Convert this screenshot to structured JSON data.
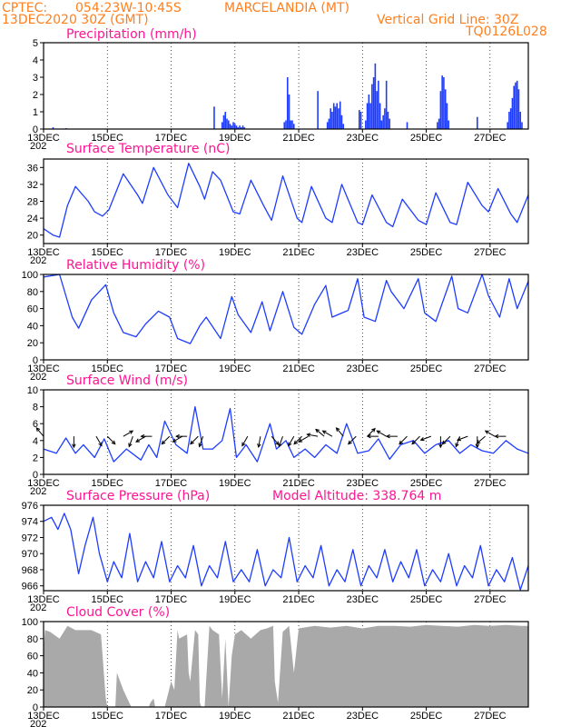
{
  "header": {
    "source": "CPTEC:",
    "coords": "054:23W-10:45S",
    "location": "MARCELANDIA (MT)",
    "run": "13DEC2020 30Z (GMT)",
    "grid_note": "Vertical Grid Line: 30Z",
    "code": "TQ0126L028"
  },
  "x_axis": {
    "labels": [
      "13DEC",
      "15DEC",
      "17DEC",
      "19DEC",
      "21DEC",
      "23DEC",
      "25DEC",
      "27DEC"
    ],
    "label_days": [
      0,
      2,
      4,
      6,
      8,
      10,
      12,
      14
    ],
    "sublabel": "202",
    "day_range": [
      0,
      15.2
    ]
  },
  "colors": {
    "series": "#1e3cff",
    "wind_arrow": "#000000",
    "cloud": "#a9a9a9",
    "title": "#ff1493",
    "header": "#ff7f1e"
  },
  "chart_data": [
    {
      "id": "precip",
      "type": "bar",
      "title": "Precipitation (mm/h)",
      "ylim": [
        0,
        5
      ],
      "yticks": [
        0,
        1,
        2,
        3,
        4,
        5
      ],
      "grid": "vertical dotted at 30Z",
      "x_day": [
        0.3,
        0.7,
        5.35,
        5.6,
        5.65,
        5.7,
        5.75,
        5.8,
        5.85,
        5.9,
        5.95,
        6.0,
        6.05,
        6.1,
        6.15,
        6.2,
        6.25,
        6.3,
        7.55,
        7.6,
        7.65,
        7.7,
        7.75,
        7.8,
        7.85,
        8.6,
        8.9,
        8.95,
        9.0,
        9.05,
        9.1,
        9.15,
        9.2,
        9.25,
        9.3,
        9.35,
        9.4,
        9.9,
        9.95,
        10.1,
        10.15,
        10.2,
        10.25,
        10.3,
        10.35,
        10.4,
        10.45,
        10.5,
        10.55,
        10.6,
        10.65,
        10.7,
        10.75,
        10.8,
        10.85,
        11.4,
        12.35,
        12.4,
        12.45,
        12.5,
        12.55,
        12.6,
        12.65,
        12.7,
        13.6,
        14.55,
        14.6,
        14.65,
        14.7,
        14.75,
        14.8,
        14.85,
        14.9,
        14.95,
        15.0
      ],
      "values": [
        0.1,
        0.05,
        1.3,
        0.4,
        0.8,
        1.0,
        0.6,
        0.5,
        0.3,
        0.2,
        0.4,
        0.3,
        0.2,
        0.1,
        0.2,
        0.1,
        0.2,
        0.1,
        0.4,
        0.5,
        3.0,
        2.0,
        0.5,
        0.5,
        0.3,
        2.2,
        0.4,
        0.6,
        1.2,
        1.0,
        1.5,
        1.3,
        1.5,
        1.2,
        1.6,
        0.8,
        0.3,
        1.1,
        1.0,
        0.5,
        1.5,
        2.0,
        1.5,
        2.6,
        3.0,
        3.8,
        2.2,
        2.8,
        1.5,
        0.5,
        0.8,
        1.2,
        2.8,
        1.0,
        0.6,
        0.4,
        0.4,
        0.6,
        2.2,
        3.1,
        3.0,
        2.3,
        1.5,
        0.5,
        0.7,
        0.4,
        1.0,
        1.2,
        1.8,
        2.5,
        2.7,
        2.8,
        2.3,
        1.0,
        0.4
      ]
    },
    {
      "id": "temperature",
      "type": "line",
      "title": "Surface Temperature (nC)",
      "ylim": [
        18,
        38
      ],
      "yticks": [
        20,
        24,
        28,
        32,
        36
      ],
      "grid": "vertical dotted at 30Z",
      "x_day": [
        0,
        0.3,
        0.5,
        0.75,
        1.0,
        1.4,
        1.6,
        1.85,
        2.05,
        2.5,
        2.95,
        3.1,
        3.45,
        3.9,
        4.2,
        4.55,
        4.9,
        5.05,
        5.3,
        5.55,
        5.95,
        6.15,
        6.5,
        6.9,
        7.15,
        7.5,
        7.95,
        8.1,
        8.4,
        8.85,
        9.05,
        9.35,
        9.85,
        10.0,
        10.3,
        10.75,
        10.95,
        11.25,
        11.75,
        12.0,
        12.3,
        12.75,
        12.95,
        13.3,
        13.75,
        13.95,
        14.25,
        14.65,
        14.85,
        15.2
      ],
      "values": [
        21.5,
        20.0,
        19.5,
        27.0,
        31.5,
        28.0,
        25.5,
        24.5,
        26.0,
        34.5,
        29.5,
        27.5,
        36.0,
        29.5,
        26.5,
        37.0,
        31.5,
        28.5,
        35.0,
        33.0,
        25.5,
        25.0,
        33.0,
        27.0,
        23.5,
        34.0,
        24.0,
        23.0,
        31.5,
        24.0,
        23.0,
        32.0,
        23.0,
        22.5,
        29.5,
        23.0,
        22.0,
        28.5,
        23.5,
        22.5,
        30.0,
        23.0,
        22.5,
        32.5,
        27.0,
        25.5,
        31.0,
        25.0,
        23.0,
        29.5
      ]
    },
    {
      "id": "humidity",
      "type": "line",
      "title": "Relative Humidity (%)",
      "ylim": [
        0,
        100
      ],
      "yticks": [
        0,
        20,
        40,
        60,
        80,
        100
      ],
      "grid": "vertical dotted at 30Z",
      "x_day": [
        0,
        0.5,
        0.9,
        1.1,
        1.5,
        1.95,
        2.2,
        2.5,
        2.9,
        3.2,
        3.6,
        3.95,
        4.2,
        4.6,
        4.9,
        5.1,
        5.55,
        5.9,
        6.1,
        6.5,
        6.85,
        7.1,
        7.5,
        7.85,
        8.1,
        8.5,
        8.85,
        9.05,
        9.55,
        9.85,
        10.05,
        10.4,
        10.75,
        10.9,
        11.3,
        11.75,
        11.95,
        12.3,
        12.8,
        13.0,
        13.3,
        13.75,
        13.95,
        14.3,
        14.6,
        14.85,
        15.2
      ],
      "values": [
        97,
        100,
        50,
        37,
        70,
        88,
        55,
        32,
        27,
        42,
        57,
        50,
        25,
        19,
        40,
        50,
        25,
        74,
        53,
        32,
        68,
        34,
        80,
        38,
        30,
        65,
        87,
        50,
        58,
        95,
        50,
        45,
        93,
        80,
        60,
        95,
        55,
        45,
        98,
        60,
        55,
        100,
        75,
        50,
        95,
        60,
        92
      ]
    },
    {
      "id": "wind",
      "type": "line",
      "title": "Surface Wind (m/s)",
      "ylim": [
        0,
        10
      ],
      "yticks": [
        0,
        2,
        4,
        6,
        8,
        10
      ],
      "grid": "vertical dotted at 30Z",
      "x_day": [
        0,
        0.4,
        0.7,
        1.0,
        1.25,
        1.6,
        1.9,
        2.2,
        2.6,
        3.05,
        3.3,
        3.55,
        3.8,
        4.15,
        4.5,
        4.75,
        5.0,
        5.3,
        5.6,
        5.85,
        6.05,
        6.35,
        6.7,
        7.1,
        7.3,
        7.6,
        7.85,
        8.2,
        8.5,
        8.85,
        9.2,
        9.5,
        9.85,
        10.2,
        10.5,
        10.85,
        11.2,
        11.6,
        11.95,
        12.3,
        12.7,
        13.05,
        13.4,
        13.75,
        14.1,
        14.5,
        14.85,
        15.2
      ],
      "values": [
        3.0,
        2.5,
        4.3,
        2.5,
        3.5,
        2.0,
        4.2,
        1.5,
        3.0,
        1.7,
        3.5,
        2.0,
        6.3,
        3.5,
        2.5,
        8.0,
        3.0,
        3.0,
        4.0,
        7.8,
        2.0,
        3.5,
        1.5,
        6.0,
        3.0,
        4.0,
        2.0,
        3.0,
        2.0,
        3.5,
        2.5,
        6.0,
        2.5,
        2.8,
        4.2,
        1.8,
        3.5,
        4.0,
        2.5,
        3.5,
        4.0,
        2.5,
        3.5,
        2.8,
        2.5,
        4.0,
        3.0,
        2.5
      ],
      "arrows": {
        "x_day": [
          0.0,
          0.95,
          1.65,
          2.0,
          2.5,
          2.8,
          3.2,
          3.4,
          3.95,
          4.35,
          4.5,
          4.85,
          5.0,
          6.4,
          6.8,
          7.15,
          7.5,
          7.85,
          8.1,
          8.3,
          8.6,
          8.8,
          9.05,
          9.4,
          9.8,
          10.15,
          10.5,
          10.75,
          11.1,
          11.4,
          11.8,
          12.15,
          12.45,
          12.75,
          13.05,
          13.3,
          13.6,
          13.85,
          14.15,
          14.5
        ],
        "dir_deg": [
          320,
          180,
          150,
          135,
          60,
          200,
          240,
          270,
          225,
          240,
          270,
          225,
          200,
          210,
          190,
          140,
          200,
          210,
          225,
          240,
          280,
          310,
          300,
          320,
          225,
          45,
          270,
          300,
          270,
          225,
          225,
          250,
          180,
          225,
          200,
          250,
          180,
          230,
          300,
          270
        ],
        "length": "proportional to speed"
      }
    },
    {
      "id": "pressure",
      "type": "line",
      "title": "Surface Pressure (hPa)",
      "ylim": [
        965.4,
        976
      ],
      "yticks": [
        966,
        968,
        970,
        972,
        974,
        976
      ],
      "grid": "vertical dotted at 30Z",
      "x_day": [
        0,
        0.25,
        0.45,
        0.65,
        0.85,
        1.1,
        1.3,
        1.55,
        1.75,
        2.0,
        2.2,
        2.45,
        2.7,
        2.95,
        3.2,
        3.45,
        3.7,
        3.95,
        4.2,
        4.45,
        4.7,
        4.95,
        5.2,
        5.45,
        5.7,
        5.95,
        6.2,
        6.45,
        6.7,
        6.95,
        7.2,
        7.45,
        7.7,
        7.95,
        8.2,
        8.45,
        8.7,
        8.95,
        9.2,
        9.45,
        9.7,
        9.95,
        10.2,
        10.45,
        10.7,
        10.95,
        11.2,
        11.45,
        11.7,
        11.95,
        12.2,
        12.45,
        12.7,
        12.95,
        13.2,
        13.45,
        13.7,
        13.95,
        14.2,
        14.45,
        14.7,
        14.95,
        15.2
      ],
      "values": [
        974.0,
        974.5,
        973.0,
        975.0,
        973.0,
        967.5,
        971.0,
        974.5,
        970.0,
        966.5,
        969.0,
        967.0,
        972.5,
        966.5,
        969.0,
        967.0,
        971.5,
        966.5,
        968.5,
        967.0,
        971.0,
        966.0,
        968.5,
        967.0,
        971.5,
        966.5,
        968.0,
        966.5,
        970.5,
        966.0,
        968.0,
        967.0,
        972.0,
        966.5,
        968.5,
        967.0,
        971.0,
        966.0,
        968.0,
        966.5,
        970.5,
        966.0,
        968.5,
        967.0,
        970.5,
        966.5,
        969.0,
        967.0,
        970.5,
        966.0,
        968.0,
        966.5,
        970.0,
        966.0,
        968.5,
        967.0,
        971.0,
        966.0,
        968.0,
        966.5,
        969.5,
        965.5,
        968.5
      ]
    },
    {
      "id": "cloud",
      "type": "area",
      "title": "Cloud Cover (%)",
      "ylim": [
        0,
        100
      ],
      "yticks": [
        0,
        20,
        40,
        60,
        80,
        100
      ],
      "grid": "vertical dotted at 30Z",
      "x_day": [
        0,
        0.05,
        0.2,
        0.5,
        0.75,
        1.0,
        1.5,
        1.8,
        1.95,
        2.0,
        2.05,
        2.25,
        2.3,
        2.5,
        2.75,
        3.0,
        3.2,
        3.3,
        3.35,
        3.45,
        3.5,
        3.55,
        3.8,
        4.0,
        4.1,
        4.2,
        4.25,
        4.5,
        4.55,
        4.6,
        4.75,
        4.85,
        4.9,
        4.95,
        5.05,
        5.2,
        5.3,
        5.5,
        5.6,
        5.7,
        5.8,
        5.9,
        6.0,
        6.2,
        6.5,
        6.8,
        7.0,
        7.2,
        7.25,
        7.35,
        7.5,
        7.7,
        7.85,
        8.0,
        8.5,
        9.0,
        9.5,
        10.0,
        10.5,
        11.0,
        11.5,
        12.0,
        12.5,
        13.0,
        13.5,
        14.0,
        14.5,
        15.0,
        15.2
      ],
      "values": [
        70,
        90,
        88,
        80,
        95,
        90,
        90,
        85,
        10,
        0,
        0,
        0,
        40,
        20,
        0,
        0,
        0,
        0,
        5,
        10,
        0,
        0,
        0,
        30,
        20,
        90,
        80,
        85,
        40,
        30,
        90,
        85,
        5,
        0,
        0,
        95,
        90,
        85,
        10,
        80,
        0,
        60,
        85,
        90,
        80,
        90,
        92,
        95,
        30,
        5,
        88,
        95,
        40,
        92,
        95,
        93,
        95,
        92,
        95,
        95,
        94,
        96,
        95,
        94,
        96,
        95,
        96,
        95,
        95
      ]
    }
  ],
  "altitude_label": "Model Altitude: 338.764 m"
}
